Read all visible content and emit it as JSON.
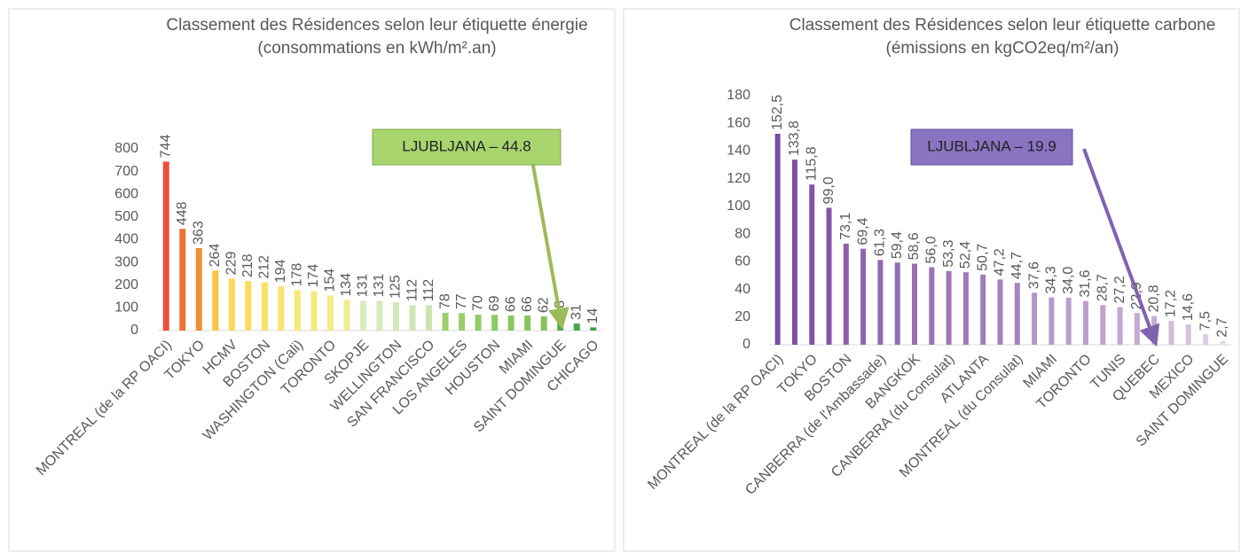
{
  "chart_data": [
    {
      "type": "bar",
      "title": "Classement des Résidences selon leur étiquette énergie (consommations en kWh/m².an)",
      "annotation": "LJUBLJANA – 44.8",
      "categories": [
        "MONTREAL (de la RP OACI)",
        null,
        "TOKYO",
        null,
        "HCMV",
        null,
        "BOSTON",
        null,
        "WASHINGTON (Cali)",
        null,
        "TORONTO",
        null,
        "SKOPJE",
        null,
        "WELLINGTON",
        null,
        "SAN FRANCISCO",
        null,
        "LOS ANGELES",
        null,
        "HOUSTON",
        null,
        "MIAMI",
        null,
        "SAINT DOMINGUE",
        null,
        "CHICAGO"
      ],
      "values": [
        744,
        448,
        363,
        264,
        229,
        218,
        212,
        194,
        178,
        174,
        154,
        134,
        131,
        131,
        125,
        112,
        112,
        78,
        77,
        70,
        69,
        66,
        66,
        62,
        48,
        31,
        14
      ],
      "colors": [
        "#e9503a",
        "#ec7236",
        "#ef8f34",
        "#f8c641",
        "#fadb57",
        "#fadd5c",
        "#fae262",
        "#f9e56b",
        "#f8e874",
        "#f6ea7c",
        "#f4ec84",
        "#f1ed8c",
        "#d8ebc4",
        "#d5e9c0",
        "#d2e8bb",
        "#cfe6b6",
        "#cbe4b1",
        "#9ccf6e",
        "#98cd6a",
        "#94cb66",
        "#90c963",
        "#8cc65f",
        "#88c45c",
        "#84c258",
        "#4fac50",
        "#45a84c",
        "#3aa347"
      ],
      "ylim": [
        0,
        800
      ],
      "yticks": [
        0,
        100,
        200,
        300,
        400,
        500,
        600,
        700,
        800
      ]
    },
    {
      "type": "bar",
      "title": "Classement des Résidences selon leur étiquette carbone (émissions en kgCO2eq/m²/an)",
      "annotation": "LJUBLJANA – 19.9",
      "categories": [
        "MONTREAL (de la RP OACI)",
        null,
        "TOKYO",
        null,
        "BOSTON",
        null,
        "CANBERRA (de l'Ambassade)",
        null,
        "BANGKOK",
        null,
        "CANBERRA (du Consulat)",
        null,
        "ATLANTA",
        null,
        "MONTREAL (du Consulat)",
        null,
        "MIAMI",
        null,
        "TORONTO",
        null,
        "TUNIS",
        null,
        "QUEBEC",
        null,
        "MEXICO",
        null,
        "SAINT DOMINGUE"
      ],
      "values": [
        152.5,
        133.8,
        115.8,
        99.0,
        73.1,
        69.4,
        61.3,
        59.4,
        58.6,
        56.0,
        53.3,
        52.4,
        50.7,
        47.2,
        44.7,
        37.6,
        34.3,
        34.0,
        31.6,
        28.7,
        27.2,
        22.9,
        20.8,
        17.2,
        14.6,
        7.5,
        2.7
      ],
      "value_labels": [
        "152,5",
        "133,8",
        "115,8",
        "99,0",
        "73,1",
        "69,4",
        "61,3",
        "59,4",
        "58,6",
        "56,0",
        "53,3",
        "52,4",
        "50,7",
        "47,2",
        "44,7",
        "37,6",
        "34,3",
        "34,0",
        "31,6",
        "28,7",
        "27,2",
        "22,9",
        "20,8",
        "17,2",
        "14,6",
        "7,5",
        "2,7"
      ],
      "colors": [
        "#7a4ca2",
        "#7d50a4",
        "#8054a6",
        "#8358a8",
        "#8b62ad",
        "#8e66af",
        "#9169b1",
        "#946db3",
        "#9670b5",
        "#9974b6",
        "#9b77b8",
        "#9d7ab9",
        "#a07dbb",
        "#a280bc",
        "#a483be",
        "#b596c7",
        "#b79ac9",
        "#ba9dca",
        "#bca0cc",
        "#bfa3cd",
        "#c1a7cf",
        "#c3aad0",
        "#c6add2",
        "#d0bcdb",
        "#d3c1dd",
        "#dbcde3",
        "#e4d9ea"
      ],
      "ylim": [
        0,
        180
      ],
      "yticks": [
        0,
        20,
        40,
        60,
        80,
        100,
        120,
        140,
        160,
        180
      ]
    }
  ]
}
